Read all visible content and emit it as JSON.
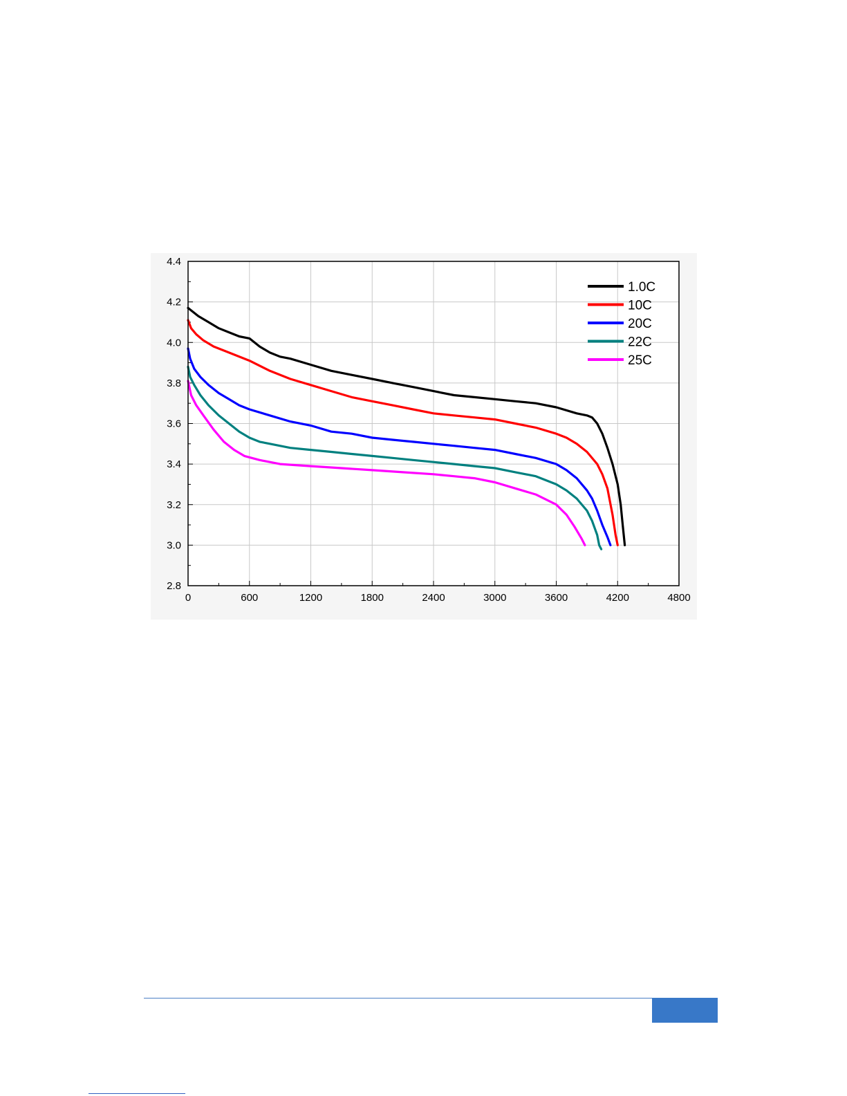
{
  "chart_data": {
    "type": "line",
    "title": "",
    "xlabel": "",
    "ylabel": "",
    "xlim": [
      0,
      4800
    ],
    "ylim": [
      2.8,
      4.4
    ],
    "x_ticks": [
      "0",
      "600",
      "1200",
      "1800",
      "2400",
      "3000",
      "3600",
      "4200",
      "4800"
    ],
    "y_ticks": [
      "2.8",
      "3.0",
      "3.2",
      "3.4",
      "3.6",
      "3.8",
      "4.0",
      "4.2",
      "4.4"
    ],
    "grid": true,
    "legend_position": "top-right",
    "series": [
      {
        "name": "1.0C",
        "color": "#000000",
        "points": [
          [
            0,
            4.17
          ],
          [
            100,
            4.13
          ],
          [
            200,
            4.1
          ],
          [
            300,
            4.07
          ],
          [
            400,
            4.05
          ],
          [
            500,
            4.03
          ],
          [
            600,
            4.02
          ],
          [
            700,
            3.98
          ],
          [
            800,
            3.95
          ],
          [
            900,
            3.93
          ],
          [
            1000,
            3.92
          ],
          [
            1200,
            3.89
          ],
          [
            1400,
            3.86
          ],
          [
            1600,
            3.84
          ],
          [
            1800,
            3.82
          ],
          [
            2000,
            3.8
          ],
          [
            2200,
            3.78
          ],
          [
            2400,
            3.76
          ],
          [
            2600,
            3.74
          ],
          [
            2800,
            3.73
          ],
          [
            3000,
            3.72
          ],
          [
            3200,
            3.71
          ],
          [
            3400,
            3.7
          ],
          [
            3600,
            3.68
          ],
          [
            3800,
            3.65
          ],
          [
            3900,
            3.64
          ],
          [
            3950,
            3.63
          ],
          [
            4000,
            3.6
          ],
          [
            4050,
            3.55
          ],
          [
            4100,
            3.48
          ],
          [
            4150,
            3.4
          ],
          [
            4200,
            3.3
          ],
          [
            4230,
            3.2
          ],
          [
            4250,
            3.1
          ],
          [
            4270,
            3.0
          ]
        ]
      },
      {
        "name": "10C",
        "color": "#ff0000",
        "points": [
          [
            0,
            4.11
          ],
          [
            30,
            4.07
          ],
          [
            80,
            4.04
          ],
          [
            150,
            4.01
          ],
          [
            250,
            3.98
          ],
          [
            400,
            3.95
          ],
          [
            600,
            3.91
          ],
          [
            800,
            3.86
          ],
          [
            1000,
            3.82
          ],
          [
            1200,
            3.79
          ],
          [
            1400,
            3.76
          ],
          [
            1600,
            3.73
          ],
          [
            1800,
            3.71
          ],
          [
            2000,
            3.69
          ],
          [
            2200,
            3.67
          ],
          [
            2400,
            3.65
          ],
          [
            2600,
            3.64
          ],
          [
            2800,
            3.63
          ],
          [
            3000,
            3.62
          ],
          [
            3200,
            3.6
          ],
          [
            3400,
            3.58
          ],
          [
            3600,
            3.55
          ],
          [
            3700,
            3.53
          ],
          [
            3800,
            3.5
          ],
          [
            3900,
            3.46
          ],
          [
            4000,
            3.4
          ],
          [
            4050,
            3.35
          ],
          [
            4100,
            3.28
          ],
          [
            4150,
            3.15
          ],
          [
            4180,
            3.05
          ],
          [
            4200,
            3.0
          ]
        ]
      },
      {
        "name": "20C",
        "color": "#0000ff",
        "points": [
          [
            0,
            3.97
          ],
          [
            20,
            3.92
          ],
          [
            60,
            3.87
          ],
          [
            120,
            3.83
          ],
          [
            200,
            3.79
          ],
          [
            300,
            3.75
          ],
          [
            400,
            3.72
          ],
          [
            500,
            3.69
          ],
          [
            600,
            3.67
          ],
          [
            800,
            3.64
          ],
          [
            1000,
            3.61
          ],
          [
            1200,
            3.59
          ],
          [
            1400,
            3.56
          ],
          [
            1600,
            3.55
          ],
          [
            1800,
            3.53
          ],
          [
            2000,
            3.52
          ],
          [
            2200,
            3.51
          ],
          [
            2400,
            3.5
          ],
          [
            2600,
            3.49
          ],
          [
            2800,
            3.48
          ],
          [
            3000,
            3.47
          ],
          [
            3200,
            3.45
          ],
          [
            3400,
            3.43
          ],
          [
            3600,
            3.4
          ],
          [
            3700,
            3.37
          ],
          [
            3800,
            3.33
          ],
          [
            3900,
            3.27
          ],
          [
            3950,
            3.23
          ],
          [
            4000,
            3.17
          ],
          [
            4050,
            3.1
          ],
          [
            4100,
            3.04
          ],
          [
            4130,
            3.0
          ]
        ]
      },
      {
        "name": "22C",
        "color": "#00807f",
        "points": [
          [
            0,
            3.88
          ],
          [
            20,
            3.83
          ],
          [
            60,
            3.79
          ],
          [
            120,
            3.74
          ],
          [
            200,
            3.69
          ],
          [
            300,
            3.64
          ],
          [
            400,
            3.6
          ],
          [
            500,
            3.56
          ],
          [
            600,
            3.53
          ],
          [
            700,
            3.51
          ],
          [
            800,
            3.5
          ],
          [
            1000,
            3.48
          ],
          [
            1200,
            3.47
          ],
          [
            1400,
            3.46
          ],
          [
            1600,
            3.45
          ],
          [
            1800,
            3.44
          ],
          [
            2000,
            3.43
          ],
          [
            2200,
            3.42
          ],
          [
            2400,
            3.41
          ],
          [
            2600,
            3.4
          ],
          [
            2800,
            3.39
          ],
          [
            3000,
            3.38
          ],
          [
            3200,
            3.36
          ],
          [
            3400,
            3.34
          ],
          [
            3600,
            3.3
          ],
          [
            3700,
            3.27
          ],
          [
            3800,
            3.23
          ],
          [
            3900,
            3.17
          ],
          [
            3950,
            3.12
          ],
          [
            4000,
            3.05
          ],
          [
            4020,
            3.0
          ],
          [
            4040,
            2.98
          ]
        ]
      },
      {
        "name": "25C",
        "color": "#ff00ff",
        "points": [
          [
            0,
            3.81
          ],
          [
            30,
            3.74
          ],
          [
            80,
            3.69
          ],
          [
            150,
            3.64
          ],
          [
            250,
            3.57
          ],
          [
            350,
            3.51
          ],
          [
            450,
            3.47
          ],
          [
            550,
            3.44
          ],
          [
            700,
            3.42
          ],
          [
            900,
            3.4
          ],
          [
            1200,
            3.39
          ],
          [
            1500,
            3.38
          ],
          [
            1800,
            3.37
          ],
          [
            2100,
            3.36
          ],
          [
            2400,
            3.35
          ],
          [
            2600,
            3.34
          ],
          [
            2800,
            3.33
          ],
          [
            3000,
            3.31
          ],
          [
            3200,
            3.28
          ],
          [
            3400,
            3.25
          ],
          [
            3600,
            3.2
          ],
          [
            3700,
            3.15
          ],
          [
            3780,
            3.09
          ],
          [
            3850,
            3.03
          ],
          [
            3880,
            3.0
          ]
        ]
      }
    ]
  },
  "footer": {
    "rule_color": "#4a7fc4",
    "box_color": "#3878c8"
  }
}
